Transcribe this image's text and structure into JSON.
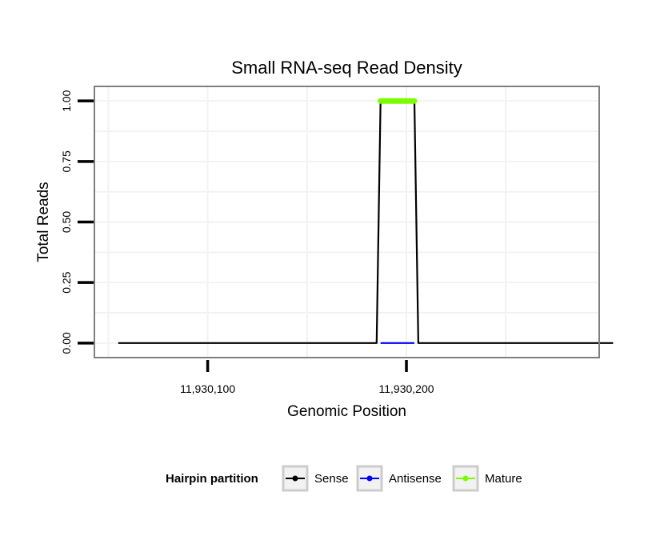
{
  "chart_data": {
    "type": "line",
    "title": "Small RNA-seq Read Density",
    "xlabel": "Genomic Position",
    "ylabel": "Total Reads",
    "xlim": [
      11930043,
      11930297
    ],
    "ylim": [
      -0.06,
      1.06
    ],
    "x_ticks": [
      {
        "value": 11930100,
        "label": "11,930,100"
      },
      {
        "value": 11930200,
        "label": "11,930,200"
      }
    ],
    "y_ticks": [
      {
        "value": 0,
        "label": "0.00"
      },
      {
        "value": 0.25,
        "label": "0.25"
      },
      {
        "value": 0.5,
        "label": "0.50"
      },
      {
        "value": 0.75,
        "label": "0.75"
      },
      {
        "value": 1.0,
        "label": "1.00"
      }
    ],
    "grid": true,
    "series": [
      {
        "name": "Sense",
        "color": "#000000",
        "points": [
          [
            11930055,
            0
          ],
          [
            11930185,
            0
          ],
          [
            11930187,
            1
          ],
          [
            11930204,
            1
          ],
          [
            11930206,
            0
          ],
          [
            11930304,
            0
          ]
        ]
      },
      {
        "name": "Antisense",
        "color": "#0000ff",
        "points": [
          [
            11930187,
            0
          ],
          [
            11930204,
            0
          ]
        ]
      },
      {
        "name": "Mature",
        "color": "#7cfc00",
        "points": [
          [
            11930187,
            1
          ],
          [
            11930204,
            1
          ]
        ]
      }
    ],
    "legend": {
      "title": "Hairpin partition",
      "position": "bottom",
      "entries": [
        {
          "label": "Sense",
          "color": "#000000"
        },
        {
          "label": "Antisense",
          "color": "#0000ff"
        },
        {
          "label": "Mature",
          "color": "#7cfc00"
        }
      ]
    }
  }
}
